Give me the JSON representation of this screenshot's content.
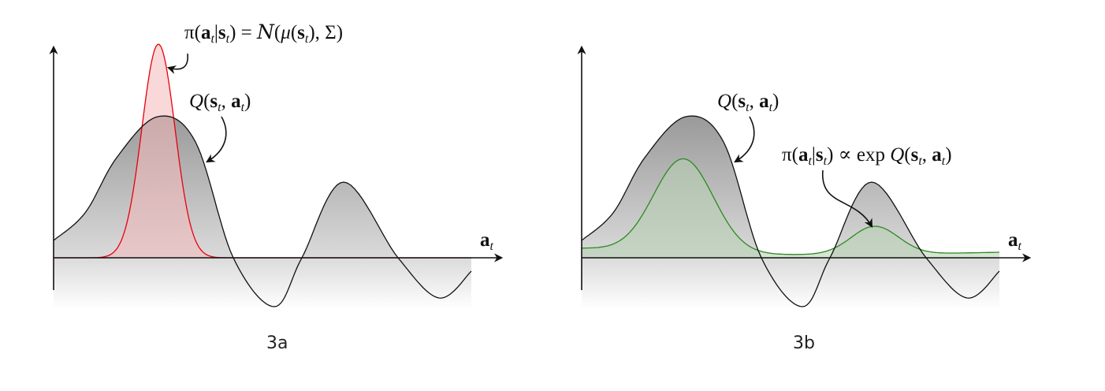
{
  "panel_a": {
    "caption": "3a",
    "policy_label": "π(a_t|s_t) = 𝒩(μ(s_t), Σ)",
    "q_label": "Q(s_t, a_t)",
    "axis_label": "a_t",
    "policy_color": "#e8000b",
    "policy_fill": "#f4b8bb"
  },
  "panel_b": {
    "caption": "3b",
    "policy_label": "π(a_t|s_t) ∝ exp Q(s_t, a_t)",
    "q_label": "Q(s_t, a_t)",
    "axis_label": "a_t",
    "policy_color": "#2a8a1e",
    "policy_fill": "#b4cfb0"
  },
  "q_curve_color": "#111111"
}
